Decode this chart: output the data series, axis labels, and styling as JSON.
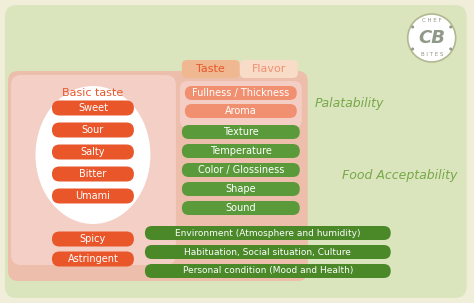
{
  "bg_color": "#f0edd8",
  "outer_box_color": "#c8dfa8",
  "pink_outer_box_color": "#f0b8a8",
  "pink_inner_box_color": "#f5d0c8",
  "ellipse_color": "#ffffff",
  "red_btn_color": "#e8562a",
  "salmon_btn_color": "#f09070",
  "green_btn_color": "#5a9a3a",
  "dark_green_btn_color": "#4a8828",
  "palatability_color": "#78a848",
  "food_accept_color": "#78a848",
  "taste_tab_color": "#f0b890",
  "flavor_tab_color": "#f8dcc8",
  "basic_taste_items": [
    "Sweet",
    "Sour",
    "Salty",
    "Bitter",
    "Umami"
  ],
  "spicy_items": [
    "Spicy",
    "Astringent"
  ],
  "taste_items": [
    "Fullness / Thickness",
    "Aroma"
  ],
  "appearance_items": [
    "Texture",
    "Temperature",
    "Color / Glossiness",
    "Shape",
    "Sound"
  ],
  "psych_items": [
    "Environment (Atmosphere and humidity)",
    "Habituation, Social situation, Culture",
    "Personal condition (Mood and Health)"
  ]
}
